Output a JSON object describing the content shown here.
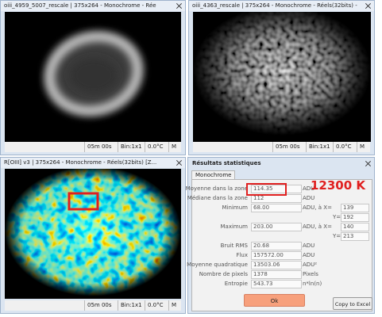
{
  "windows": [
    {
      "title": "oiii_4959_5007_rescale | 375x264 - Monochrome - Rée",
      "status": [
        "05m 00s",
        "Bin:1x1",
        "0.0°C",
        "M"
      ]
    },
    {
      "title": "oiii_4363_rescale | 375x264 - Monochrome - Réels(32bits) -",
      "status": [
        "05m 00s",
        "Bin:1x1",
        "0.0°C",
        "M"
      ]
    },
    {
      "title": "R[OIII] v3 | 375x264 - Monochrome - Réels(32bits) [Z...",
      "status": [
        "05m 00s",
        "Bin:1x1",
        "0.0°C",
        "M"
      ]
    }
  ],
  "stats": {
    "title": "Résultats statistiques",
    "tab": "Monochrome",
    "rows": [
      {
        "label": "Moyenne dans la zone",
        "value": "114.35",
        "unit": "ADU"
      },
      {
        "label": "Médiane dans la zone",
        "value": "112",
        "unit": "ADU"
      },
      {
        "label": "Minimum",
        "value": "68.00",
        "unit": "ADU, à X=",
        "x": "139",
        "ylabel": "Y=",
        "y": "192"
      },
      {
        "label": "Maximum",
        "value": "203.00",
        "unit": "ADU, à X=",
        "x": "140",
        "ylabel": "Y=",
        "y": "213"
      },
      {
        "label": "Bruit RMS",
        "value": "20.68",
        "unit": "ADU"
      },
      {
        "label": "Flux",
        "value": "157572.00",
        "unit": "ADU"
      },
      {
        "label": "Moyenne quadratique",
        "value": "13503.06",
        "unit": "ADU²"
      },
      {
        "label": "Nombre de pixels",
        "value": "1378",
        "unit": "Pixels"
      },
      {
        "label": "Entropie",
        "value": "543.73",
        "unit": "n*ln(n)"
      }
    ],
    "annotation": "12300 K",
    "ok": "Ok",
    "excel": "Copy to Excel"
  }
}
